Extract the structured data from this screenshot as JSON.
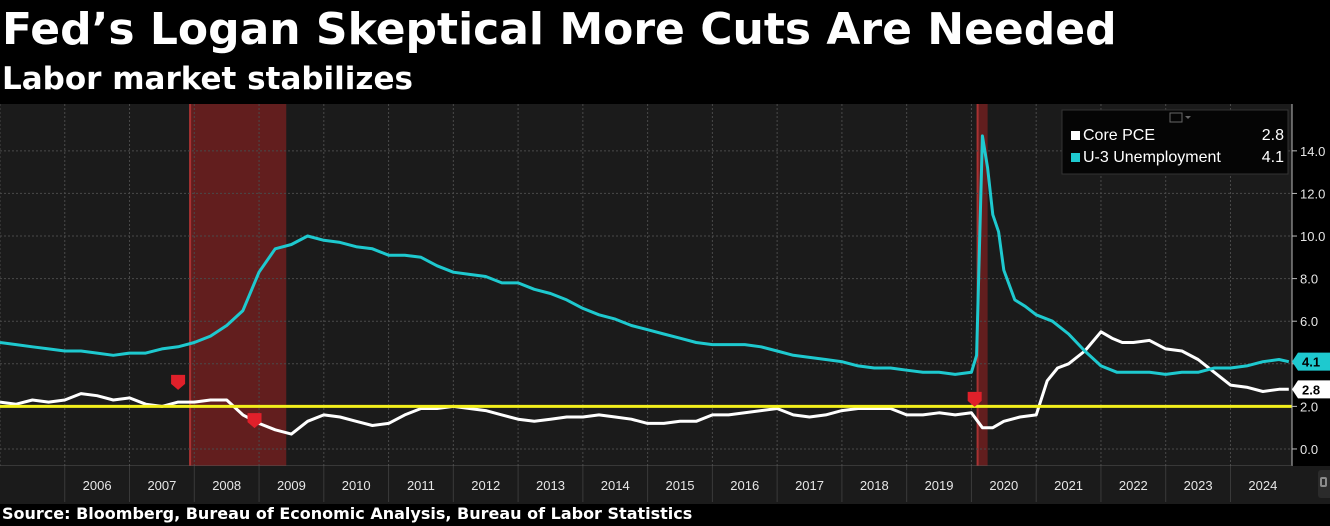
{
  "title": "Fed’s Logan Skeptical More Cuts Are Needed",
  "subtitle": "Labor market stabilizes",
  "source": "Source: Bloomberg, Bureau of Economic Analysis, Bureau of Labor Statistics",
  "colors": {
    "background": "#000000",
    "plot_background": "#1b1b1b",
    "core_pce": "#ffffff",
    "unemployment": "#1ec9cf",
    "target_line": "#f2ef1c",
    "recession": "#6a1f1f",
    "marker": "#e0202a"
  },
  "chart_data": {
    "type": "line",
    "title": "",
    "xlabel": "",
    "ylabel": "",
    "x_tick_labels": [
      "2006",
      "2007",
      "2008",
      "2009",
      "2010",
      "2011",
      "2012",
      "2013",
      "2014",
      "2015",
      "2016",
      "2017",
      "2018",
      "2019",
      "2020",
      "2021",
      "2022",
      "2023",
      "2024"
    ],
    "xlim": [
      2005.0,
      2024.95
    ],
    "ylim": [
      -0.8,
      16.2
    ],
    "y_ticks": [
      0,
      2,
      4,
      6,
      8,
      10,
      12,
      14
    ],
    "y_tick_labels": [
      "0.0",
      "2.0",
      "4.0",
      "6.0",
      "8.0",
      "10.0",
      "12.0",
      "14.0"
    ],
    "y_axis_side": "right",
    "grid": true,
    "legend_position": "top-right",
    "recession_bands": [
      [
        2007.92,
        2009.42
      ],
      [
        2020.08,
        2020.25
      ]
    ],
    "target_line": 2.0,
    "series": [
      {
        "name": "Core PCE",
        "last_value_label": "2.8",
        "legend_value": "2.8",
        "x": [
          2005.0,
          2005.25,
          2005.5,
          2005.75,
          2006.0,
          2006.25,
          2006.5,
          2006.75,
          2007.0,
          2007.25,
          2007.5,
          2007.75,
          2008.0,
          2008.25,
          2008.5,
          2008.75,
          2009.0,
          2009.25,
          2009.5,
          2009.75,
          2010.0,
          2010.25,
          2010.5,
          2010.75,
          2011.0,
          2011.25,
          2011.5,
          2011.75,
          2012.0,
          2012.25,
          2012.5,
          2012.75,
          2013.0,
          2013.25,
          2013.5,
          2013.75,
          2014.0,
          2014.25,
          2014.5,
          2014.75,
          2015.0,
          2015.25,
          2015.5,
          2015.75,
          2016.0,
          2016.25,
          2016.5,
          2016.75,
          2017.0,
          2017.25,
          2017.5,
          2017.75,
          2018.0,
          2018.25,
          2018.5,
          2018.75,
          2019.0,
          2019.25,
          2019.5,
          2019.75,
          2020.0,
          2020.17,
          2020.33,
          2020.5,
          2020.75,
          2021.0,
          2021.17,
          2021.33,
          2021.5,
          2021.75,
          2022.0,
          2022.17,
          2022.33,
          2022.5,
          2022.75,
          2023.0,
          2023.25,
          2023.5,
          2023.75,
          2024.0,
          2024.25,
          2024.5,
          2024.75,
          2024.9
        ],
        "values": [
          2.2,
          2.1,
          2.3,
          2.2,
          2.3,
          2.6,
          2.5,
          2.3,
          2.4,
          2.1,
          2.0,
          2.2,
          2.2,
          2.3,
          2.3,
          1.6,
          1.2,
          0.9,
          0.7,
          1.3,
          1.6,
          1.5,
          1.3,
          1.1,
          1.2,
          1.6,
          1.9,
          1.9,
          2.0,
          1.9,
          1.8,
          1.6,
          1.4,
          1.3,
          1.4,
          1.5,
          1.5,
          1.6,
          1.5,
          1.4,
          1.2,
          1.2,
          1.3,
          1.3,
          1.6,
          1.6,
          1.7,
          1.8,
          1.9,
          1.6,
          1.5,
          1.6,
          1.8,
          1.9,
          1.9,
          1.9,
          1.6,
          1.6,
          1.7,
          1.6,
          1.7,
          1.0,
          1.0,
          1.3,
          1.5,
          1.6,
          3.2,
          3.8,
          4.0,
          4.6,
          5.5,
          5.2,
          5.0,
          5.0,
          5.1,
          4.7,
          4.6,
          4.2,
          3.6,
          3.0,
          2.9,
          2.7,
          2.8,
          2.8
        ]
      },
      {
        "name": "U-3 Unemployment",
        "last_value_label": "4.1",
        "legend_value": "4.1",
        "x": [
          2005.0,
          2005.25,
          2005.5,
          2005.75,
          2006.0,
          2006.25,
          2006.5,
          2006.75,
          2007.0,
          2007.25,
          2007.5,
          2007.75,
          2008.0,
          2008.25,
          2008.5,
          2008.75,
          2009.0,
          2009.25,
          2009.5,
          2009.75,
          2010.0,
          2010.25,
          2010.5,
          2010.75,
          2011.0,
          2011.25,
          2011.5,
          2011.75,
          2012.0,
          2012.25,
          2012.5,
          2012.75,
          2013.0,
          2013.25,
          2013.5,
          2013.75,
          2014.0,
          2014.25,
          2014.5,
          2014.75,
          2015.0,
          2015.25,
          2015.5,
          2015.75,
          2016.0,
          2016.25,
          2016.5,
          2016.75,
          2017.0,
          2017.25,
          2017.5,
          2017.75,
          2018.0,
          2018.25,
          2018.5,
          2018.75,
          2019.0,
          2019.25,
          2019.5,
          2019.75,
          2020.0,
          2020.08,
          2020.17,
          2020.25,
          2020.33,
          2020.42,
          2020.5,
          2020.67,
          2020.83,
          2021.0,
          2021.25,
          2021.5,
          2021.75,
          2022.0,
          2022.25,
          2022.5,
          2022.75,
          2023.0,
          2023.25,
          2023.5,
          2023.75,
          2024.0,
          2024.25,
          2024.5,
          2024.75,
          2024.9
        ],
        "values": [
          5.0,
          4.9,
          4.8,
          4.7,
          4.6,
          4.6,
          4.5,
          4.4,
          4.5,
          4.5,
          4.7,
          4.8,
          5.0,
          5.3,
          5.8,
          6.5,
          8.3,
          9.4,
          9.6,
          10.0,
          9.8,
          9.7,
          9.5,
          9.4,
          9.1,
          9.1,
          9.0,
          8.6,
          8.3,
          8.2,
          8.1,
          7.8,
          7.8,
          7.5,
          7.3,
          7.0,
          6.6,
          6.3,
          6.1,
          5.8,
          5.6,
          5.4,
          5.2,
          5.0,
          4.9,
          4.9,
          4.9,
          4.8,
          4.6,
          4.4,
          4.3,
          4.2,
          4.1,
          3.9,
          3.8,
          3.8,
          3.7,
          3.6,
          3.6,
          3.5,
          3.6,
          4.4,
          14.7,
          13.2,
          11.0,
          10.2,
          8.4,
          7.0,
          6.7,
          6.3,
          6.0,
          5.4,
          4.6,
          3.9,
          3.6,
          3.6,
          3.6,
          3.5,
          3.6,
          3.6,
          3.8,
          3.8,
          3.9,
          4.1,
          4.2,
          4.1
        ]
      }
    ]
  }
}
